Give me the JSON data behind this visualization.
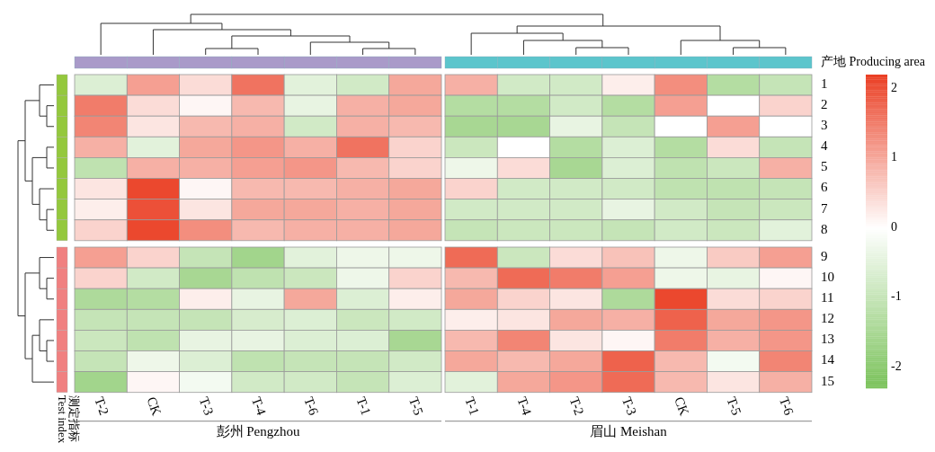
{
  "chart_data": {
    "type": "heatmap",
    "categories": [
      "T-2",
      "CK",
      "T-3",
      "T-4",
      "T-6",
      "T-1",
      "T-5",
      "T-1",
      "T-4",
      "T-2",
      "T-3",
      "CK",
      "T-5",
      "T-6"
    ],
    "y_categories": [
      "1",
      "2",
      "3",
      "4",
      "5",
      "6",
      "7",
      "8",
      "9",
      "10",
      "11",
      "12",
      "13",
      "14",
      "15"
    ],
    "clim": [
      -2.3,
      2.2
    ],
    "cticks": [
      -2,
      -1,
      0,
      1,
      2
    ],
    "ylabel": "测定指标 Test index",
    "annotations": [
      "产地 Producing area",
      "彭州 Pengzhou",
      "眉山 Meishan"
    ],
    "cells": [
      [
        -0.6,
        1.1,
        0.4,
        1.6,
        -0.5,
        -0.8,
        1.0,
        0.9,
        -0.8,
        -0.8,
        0.2,
        1.3,
        -1.3,
        -1.0
      ],
      [
        1.5,
        0.4,
        0.1,
        0.8,
        -0.4,
        0.9,
        1.0,
        -1.3,
        -1.3,
        -0.8,
        -1.3,
        1.1,
        0.0,
        0.5
      ],
      [
        1.4,
        0.3,
        0.8,
        0.9,
        -0.8,
        0.9,
        0.8,
        -1.5,
        -1.5,
        -0.4,
        -1.0,
        0.0,
        1.1,
        0.0
      ],
      [
        0.9,
        -0.5,
        1.0,
        1.2,
        0.9,
        1.6,
        0.5,
        -0.9,
        0.0,
        -1.3,
        -0.6,
        -1.3,
        0.4,
        -1.0
      ],
      [
        -1.1,
        0.9,
        0.9,
        1.1,
        1.2,
        0.8,
        0.5,
        -0.3,
        0.4,
        -1.5,
        -0.6,
        -1.1,
        -0.9,
        0.9
      ],
      [
        0.3,
        2.1,
        0.1,
        0.8,
        0.8,
        0.9,
        1.0,
        0.5,
        -0.8,
        -0.8,
        -0.8,
        -1.1,
        -1.1,
        -1.0
      ],
      [
        0.2,
        2.0,
        0.3,
        1.0,
        1.0,
        0.9,
        1.0,
        -0.8,
        -0.8,
        -0.8,
        -0.4,
        -0.8,
        -1.0,
        -0.9
      ],
      [
        0.5,
        2.1,
        1.3,
        0.8,
        0.9,
        0.9,
        1.0,
        -1.0,
        -0.9,
        -0.9,
        -1.0,
        -0.8,
        -0.9,
        -0.5
      ],
      [
        1.1,
        0.5,
        -1.0,
        -1.6,
        -0.5,
        -0.3,
        -0.3,
        1.7,
        -0.9,
        0.4,
        0.7,
        -0.3,
        0.6,
        1.1
      ],
      [
        0.5,
        -0.8,
        -1.5,
        -1.1,
        -0.9,
        -0.3,
        0.5,
        0.8,
        1.7,
        1.5,
        1.1,
        -0.3,
        -0.4,
        0.1
      ],
      [
        -1.4,
        -1.3,
        0.2,
        -0.4,
        1.0,
        -0.6,
        0.2,
        1.0,
        0.5,
        0.3,
        -1.4,
        2.1,
        0.4,
        0.5
      ],
      [
        -1.0,
        -1.0,
        -1.0,
        -0.7,
        -0.6,
        -0.9,
        -0.8,
        0.2,
        0.3,
        1.0,
        0.9,
        1.8,
        1.0,
        1.2
      ],
      [
        -0.9,
        -1.1,
        -0.4,
        -0.4,
        -0.6,
        -0.6,
        -1.5,
        0.8,
        1.4,
        0.3,
        0.1,
        1.5,
        0.9,
        1.2
      ],
      [
        -1.0,
        -0.3,
        -0.6,
        -1.1,
        -1.0,
        -1.0,
        -0.8,
        1.0,
        0.8,
        1.0,
        1.8,
        0.8,
        -0.2,
        1.4
      ],
      [
        -1.6,
        0.1,
        -0.2,
        -0.8,
        -0.8,
        -1.0,
        -0.6,
        -0.5,
        1.0,
        1.2,
        1.7,
        0.8,
        0.3,
        0.9
      ]
    ]
  }
}
